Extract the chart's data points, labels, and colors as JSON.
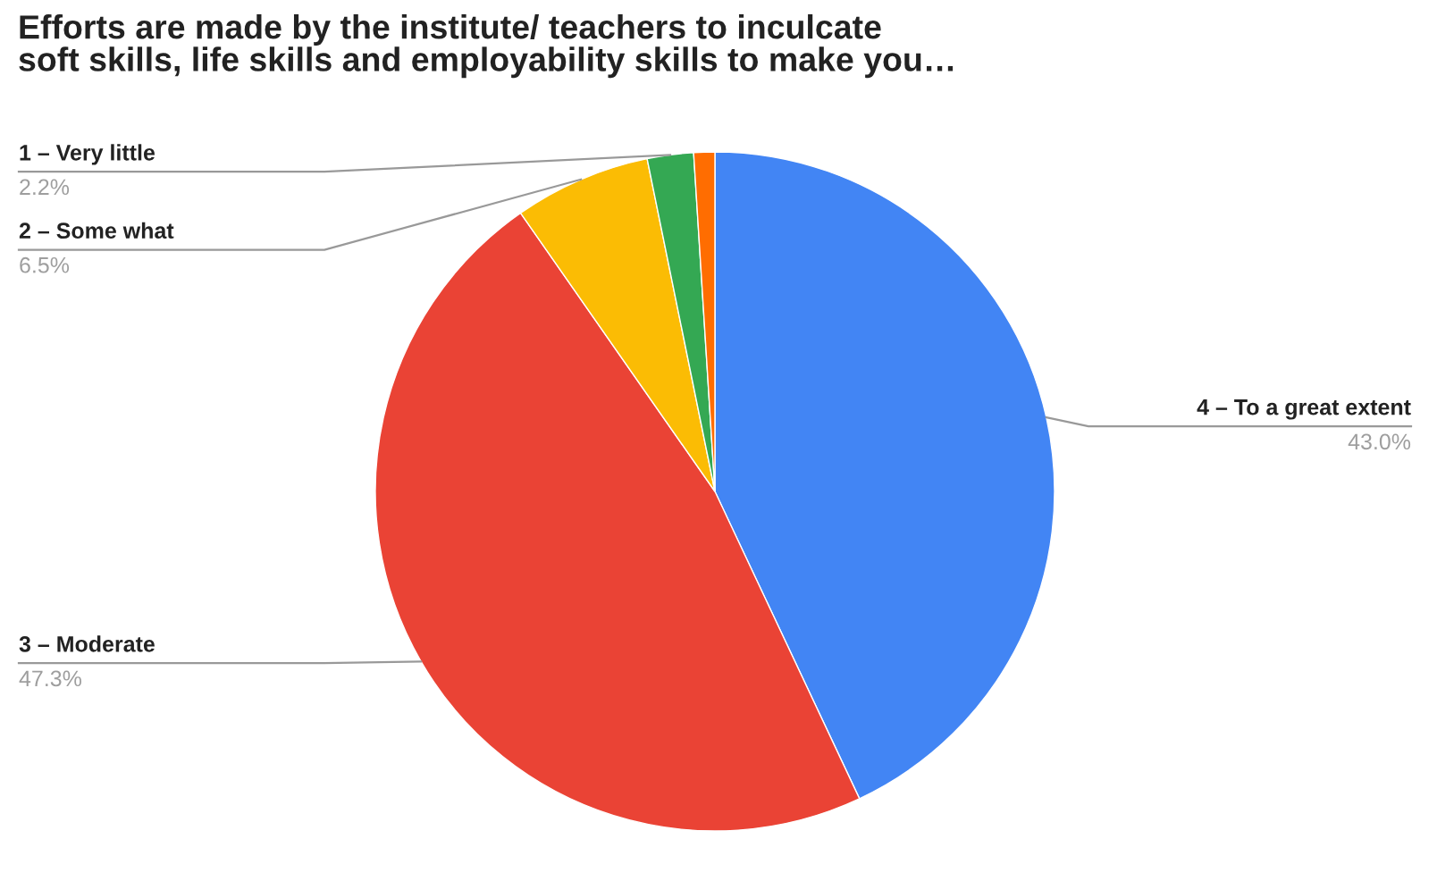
{
  "chart_data": {
    "type": "pie",
    "title": "Efforts are made by the institute/ teachers to inculcate\nsoft skills, life skills and employability skills to make you…",
    "categories": [
      "4 – To a great extent",
      "3 – Moderate",
      "2 – Some what",
      "1 – Very little",
      null
    ],
    "values": [
      43.0,
      47.3,
      6.5,
      2.2,
      1.0
    ],
    "value_labels": [
      "43.0%",
      "47.3%",
      "6.5%",
      "2.2%",
      null
    ],
    "colors": [
      "#4285f4",
      "#ea4335",
      "#fbbc04",
      "#34a853",
      "#ff6d01"
    ],
    "legend": false
  }
}
